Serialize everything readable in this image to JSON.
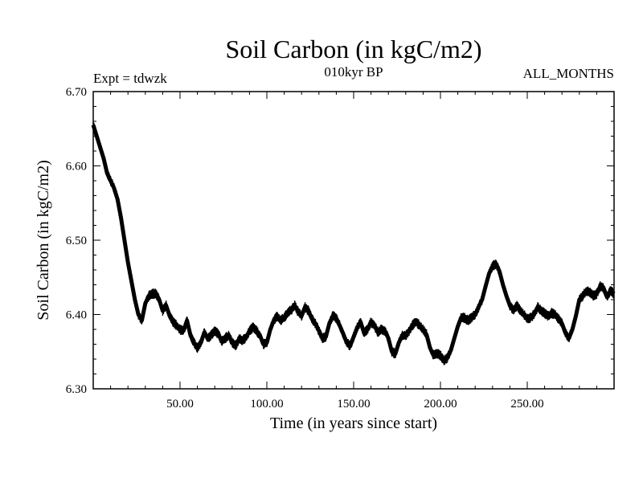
{
  "chart_data": {
    "type": "line",
    "title": "Soil Carbon (in kgC/m2)",
    "subtitle": "010kyr BP",
    "left_label": "Expt = tdwzk",
    "right_label": "ALL_MONTHS",
    "xlabel": "Time (in years since start)",
    "ylabel": "Soil Carbon (in kgC/m2)",
    "xlim": [
      0,
      300
    ],
    "ylim": [
      6.3,
      6.7
    ],
    "x_ticks": [
      50,
      100,
      150,
      200,
      250
    ],
    "x_tick_labels": [
      "50.00",
      "100.00",
      "150.00",
      "200.00",
      "250.00"
    ],
    "y_ticks": [
      6.3,
      6.4,
      6.5,
      6.6,
      6.7
    ],
    "y_tick_labels": [
      "6.30",
      "6.40",
      "6.50",
      "6.60",
      "6.70"
    ],
    "grid": false,
    "line_color": "#000000",
    "band_halfwidth": 0.007,
    "series": [
      {
        "x": [
          0,
          2,
          4,
          6,
          8,
          10,
          12,
          14,
          16,
          18,
          20,
          22,
          24,
          26,
          28,
          30,
          32,
          34,
          36,
          38,
          40,
          42,
          44,
          46,
          48,
          50,
          52,
          54,
          56,
          58,
          60,
          62,
          64,
          66,
          68,
          70,
          72,
          74,
          76,
          78,
          80,
          82,
          84,
          86,
          88,
          90,
          92,
          94,
          96,
          98,
          100,
          102,
          104,
          106,
          108,
          110,
          112,
          114,
          116,
          118,
          120,
          122,
          124,
          126,
          128,
          130,
          132,
          134,
          136,
          138,
          140,
          142,
          144,
          146,
          148,
          150,
          152,
          154,
          156,
          158,
          160,
          162,
          164,
          166,
          168,
          170,
          172,
          174,
          176,
          178,
          180,
          182,
          184,
          186,
          188,
          190,
          192,
          194,
          196,
          198,
          200,
          202,
          204,
          206,
          208,
          210,
          212,
          214,
          216,
          218,
          220,
          222,
          224,
          226,
          228,
          230,
          232,
          234,
          236,
          238,
          240,
          242,
          244,
          246,
          248,
          250,
          252,
          254,
          256,
          258,
          260,
          262,
          264,
          266,
          268,
          270,
          272,
          274,
          276,
          278,
          280,
          282,
          284,
          286,
          288,
          290,
          292,
          294,
          296,
          298,
          300
        ],
        "y": [
          6.655,
          6.64,
          6.625,
          6.61,
          6.59,
          6.58,
          6.57,
          6.555,
          6.53,
          6.5,
          6.47,
          6.445,
          6.42,
          6.4,
          6.392,
          6.415,
          6.425,
          6.428,
          6.428,
          6.42,
          6.405,
          6.412,
          6.398,
          6.39,
          6.385,
          6.38,
          6.378,
          6.392,
          6.372,
          6.362,
          6.355,
          6.362,
          6.376,
          6.368,
          6.372,
          6.378,
          6.374,
          6.364,
          6.368,
          6.372,
          6.362,
          6.358,
          6.367,
          6.365,
          6.369,
          6.378,
          6.383,
          6.378,
          6.372,
          6.36,
          6.362,
          6.38,
          6.392,
          6.398,
          6.392,
          6.396,
          6.402,
          6.406,
          6.412,
          6.404,
          6.398,
          6.41,
          6.405,
          6.394,
          6.388,
          6.378,
          6.368,
          6.37,
          6.388,
          6.398,
          6.395,
          6.385,
          6.374,
          6.362,
          6.358,
          6.37,
          6.382,
          6.39,
          6.375,
          6.38,
          6.39,
          6.385,
          6.376,
          6.38,
          6.378,
          6.368,
          6.35,
          6.347,
          6.362,
          6.372,
          6.372,
          6.378,
          6.386,
          6.39,
          6.385,
          6.38,
          6.373,
          6.355,
          6.345,
          6.348,
          6.345,
          6.338,
          6.342,
          6.352,
          6.368,
          6.384,
          6.396,
          6.395,
          6.392,
          6.396,
          6.4,
          6.41,
          6.42,
          6.438,
          6.455,
          6.465,
          6.468,
          6.458,
          6.44,
          6.425,
          6.412,
          6.406,
          6.412,
          6.405,
          6.4,
          6.394,
          6.396,
          6.4,
          6.41,
          6.405,
          6.402,
          6.398,
          6.402,
          6.4,
          6.394,
          6.388,
          6.375,
          6.368,
          6.38,
          6.398,
          6.42,
          6.425,
          6.432,
          6.43,
          6.425,
          6.428,
          6.438,
          6.435,
          6.424,
          6.432,
          6.428
        ]
      }
    ]
  }
}
